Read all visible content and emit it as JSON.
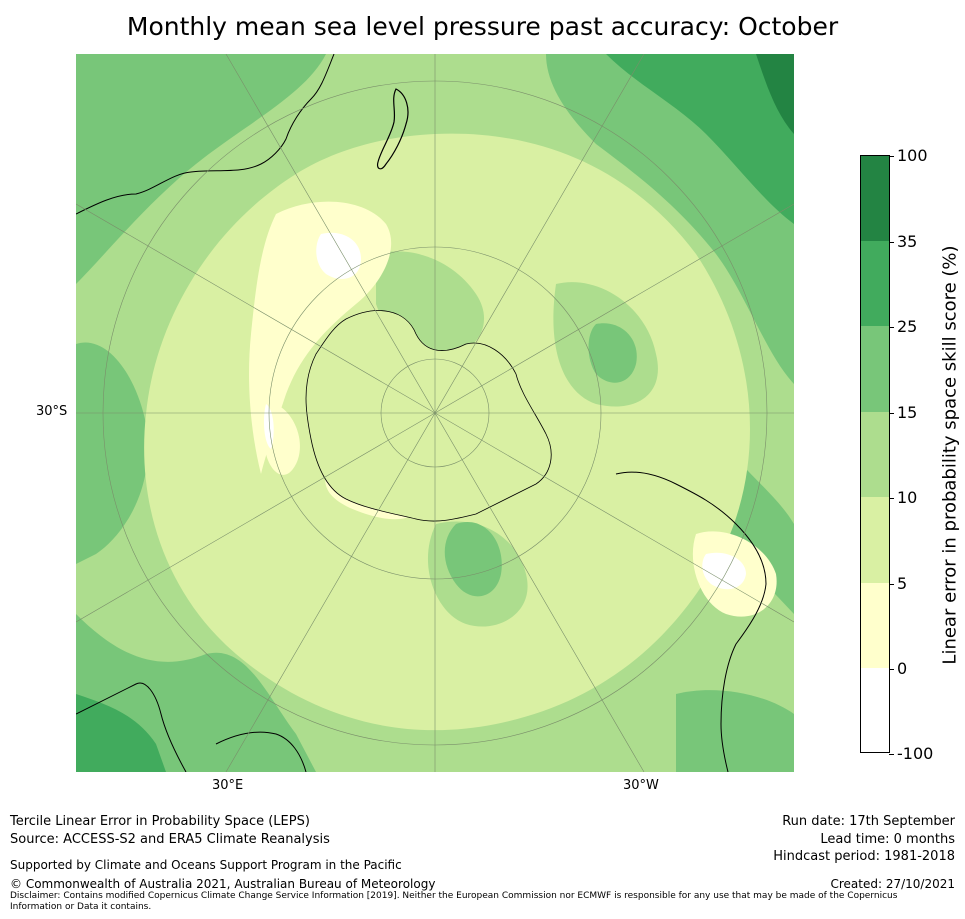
{
  "title": "Monthly mean sea level pressure past accuracy: October",
  "map": {
    "lat_labels": [
      "30°S"
    ],
    "lon_labels": [
      "30°E",
      "30°W"
    ],
    "colors": {
      "white": "#ffffff",
      "pale_yellow": "#ffffcc",
      "light_yellow_green": "#d9f0a3",
      "light_green": "#addd8e",
      "mid_green": "#78c679",
      "green": "#41ab5d",
      "dark_green": "#238443",
      "coast": "#000000",
      "grid": "#7a8f6a"
    }
  },
  "colorbar": {
    "label": "Linear error in probability space skill score (%)",
    "ticks": [
      "100",
      "35",
      "25",
      "15",
      "10",
      "5",
      "0",
      "-100"
    ],
    "bins": [
      {
        "from": 35,
        "to": 100,
        "color": "#238443"
      },
      {
        "from": 25,
        "to": 35,
        "color": "#41ab5d"
      },
      {
        "from": 15,
        "to": 25,
        "color": "#78c679"
      },
      {
        "from": 10,
        "to": 15,
        "color": "#addd8e"
      },
      {
        "from": 5,
        "to": 10,
        "color": "#d9f0a3"
      },
      {
        "from": 0,
        "to": 5,
        "color": "#ffffcc"
      },
      {
        "from": -100,
        "to": 0,
        "color": "#ffffff"
      }
    ]
  },
  "footer": {
    "method": "Tercile Linear Error in Probability Space (LEPS)",
    "source": "Source: ACCESS-S2 and ERA5 Climate Reanalysis",
    "support": "Supported by Climate and Oceans Support Program in the Pacific",
    "copyright": "© Commonwealth of Australia 2021, Australian Bureau of Meteorology",
    "disclaimer": "Disclaimer: Contains modified Copernicus Climate Change Service Information [2019]. Neither the European Commission nor ECMWF is responsible for any use that may be made of the Copernicus Information or Data it contains.",
    "run_date": "Run date: 17th September",
    "lead_time": "Lead time: 0 months",
    "hindcast": "Hindcast period: 1981-2018",
    "created": "Created: 27/10/2021"
  }
}
